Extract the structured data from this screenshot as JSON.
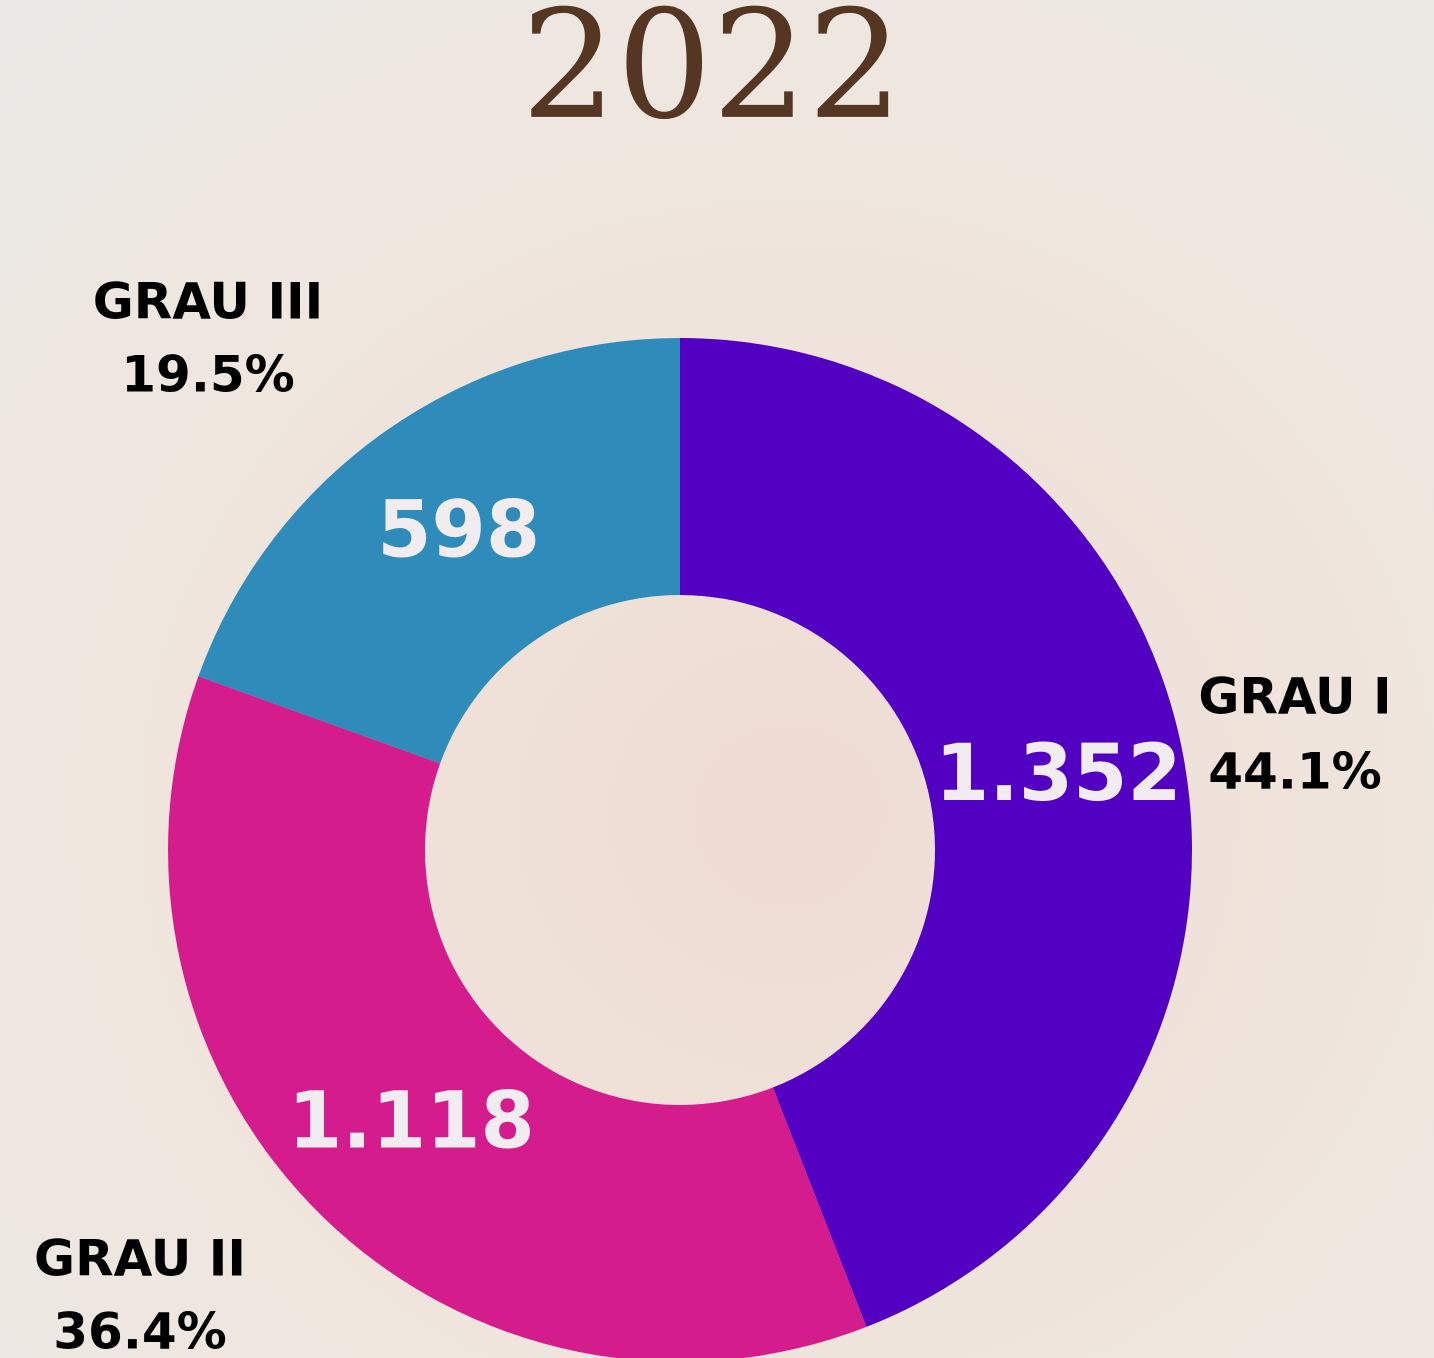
{
  "chart_data": {
    "type": "donut",
    "title": "2022",
    "categories": [
      "GRAU I",
      "GRAU II",
      "GRAU III"
    ],
    "values": [
      1352,
      1118,
      598
    ],
    "value_labels": [
      "1.352",
      "1.118",
      "598"
    ],
    "percentages": [
      44.1,
      36.4,
      19.5
    ],
    "percent_labels": [
      "44.1%",
      "36.4%",
      "19.5%"
    ],
    "colors": [
      "#5200c1",
      "#d41c8c",
      "#2e8bba"
    ]
  }
}
